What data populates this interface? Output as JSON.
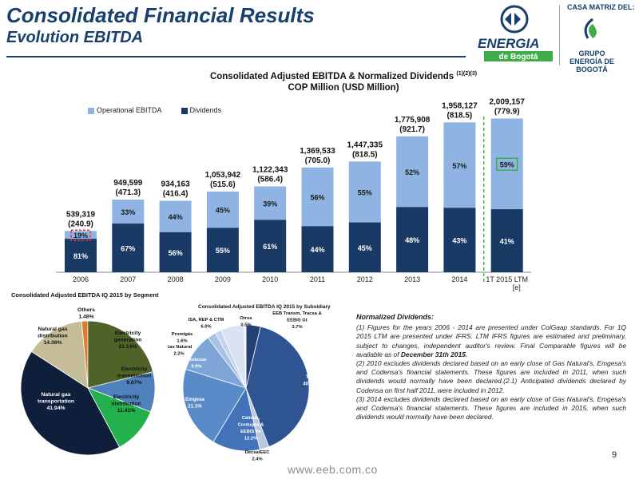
{
  "header": {
    "title": "Consolidated Financial Results",
    "subtitle": "Evolution EBITDA",
    "brand_logo_text": "ENERGIA",
    "brand_logo_sub": "de Bogotá",
    "casa_label": "CASA MATRIZ DEL:",
    "grupo_label": "GRUPO ENERGÍA DE BOGOTÁ"
  },
  "colors": {
    "navy": "#17406d",
    "light_blue": "#8fb4e3",
    "dark_bar": "#1a3a66",
    "highlight_red": "#e03030",
    "highlight_green": "#3fae49"
  },
  "chart_data": [
    {
      "type": "bar",
      "title": "Consolidated Adjusted EBITDA & Normalized Dividends",
      "title_superscript": "(1)(2)(3)",
      "subtitle": "COP Million (USD Million)",
      "categories": [
        "2006",
        "2007",
        "2008",
        "2009",
        "2010",
        "2011",
        "2012",
        "2013",
        "2014",
        "1T 2015 LTM [e]"
      ],
      "totals": [
        539319,
        949599,
        934163,
        1053942,
        1122343,
        1369533,
        1447335,
        1775908,
        1958127,
        2009157
      ],
      "total_labels": [
        "539,319",
        "949,599",
        "934,163",
        "1,053,942",
        "1,122,343",
        "1,369,533",
        "1,447,335",
        "1,775,908",
        "1,958,127",
        "2,009,157"
      ],
      "usd_labels": [
        "(240.9)",
        "(471.3)",
        "(416.4)",
        "(515.6)",
        "(586.4)",
        "(705.0)",
        "(818.5)",
        "(921.7)",
        "(818.5)",
        "(779.9)"
      ],
      "series": [
        {
          "name": "Dividends",
          "color": "#1a3a66",
          "values": [
            81,
            67,
            56,
            55,
            61,
            44,
            45,
            48,
            43,
            41
          ],
          "labels": [
            "81%",
            "67%",
            "56%",
            "55%",
            "61%",
            "44%",
            "45%",
            "48%",
            "43%",
            "41%"
          ]
        },
        {
          "name": "Operational EBITDA",
          "color": "#8fb4e3",
          "values": [
            19,
            33,
            44,
            45,
            39,
            56,
            55,
            52,
            57,
            59
          ],
          "labels": [
            "19%",
            "33%",
            "44%",
            "45%",
            "39%",
            "56%",
            "55%",
            "52%",
            "57%",
            "59%"
          ]
        }
      ],
      "legend_labels": [
        "Operational EBITDA",
        "Dividends"
      ],
      "highlighted": {
        "red_index": 0,
        "green_index": 9
      },
      "ylim": [
        0,
        2400000
      ],
      "grid": false,
      "legend_position": "top-left"
    },
    {
      "type": "pie",
      "title": "Consolidated Adjusted EBITDA IQ 2015 by Segment",
      "slices": [
        {
          "label": "Others",
          "value": 1.48,
          "text": "1.48%",
          "color": "#e07a30"
        },
        {
          "label": "Electricity generation",
          "value": 21.14,
          "text": "21.14%",
          "color": "#4f6228"
        },
        {
          "label": "Electricity transmission",
          "value": 9.67,
          "text": "9.67%",
          "color": "#4f81bd"
        },
        {
          "label": "Electricity distribution",
          "value": 11.41,
          "text": "11.41%",
          "color": "#22b14c"
        },
        {
          "label": "Natural gas transportation",
          "value": 41.94,
          "text": "41.94%",
          "color": "#0f1e3a"
        },
        {
          "label": "Natural gas distribution",
          "value": 14.36,
          "text": "14.36%",
          "color": "#c4bd97"
        }
      ]
    },
    {
      "type": "pie",
      "title": "Consolidated Adjusted EBITDA IQ 2015 by Subsidiary",
      "slices": [
        {
          "label": "EEB Transm, Tracsa & EEBIS Gt",
          "value": 3.7,
          "text": "3.7%",
          "color": "#233f73"
        },
        {
          "label": "TGI",
          "value": 40.4,
          "text": "40.4%",
          "color": "#2e5591"
        },
        {
          "label": "Decsa/EEC",
          "value": 2.4,
          "text": "2.4%",
          "color": "#b8c8de"
        },
        {
          "label": "Cálidda, Contugas & EEBIS Pe",
          "value": 12.2,
          "text": "12.2%",
          "color": "#4472b8"
        },
        {
          "label": "Emgesa",
          "value": 21.1,
          "text": "21.1%",
          "color": "#5a8ac8"
        },
        {
          "label": "Codensa",
          "value": 9.9,
          "text": "9.9%",
          "color": "#7ea5d8"
        },
        {
          "label": "Gas Natural",
          "value": 2.2,
          "text": "2.2%",
          "color": "#a9c2e4"
        },
        {
          "label": "Promigás",
          "value": 1.6,
          "text": "1.6%",
          "color": "#c2d3ea"
        },
        {
          "label": "ISA, REP & CTM",
          "value": 6.0,
          "text": "6.0%",
          "color": "#d9e3f1"
        },
        {
          "label": "Otros",
          "value": 0.5,
          "text": "0.5%",
          "color": "#e9eef6"
        }
      ]
    }
  ],
  "notes": {
    "heading": "Normalized Dividends:",
    "n1a": "(1) Figures for the years 2006 - 2014 are presented under ColGaap standards. For 1Q 2015 LTM are presented under IFRS. LTM IFRS figures are estimated and preliminary, subject to changes, independent auditor's review. Final Comparable figures will be available as of ",
    "n1b": "December 31th 2015.",
    "n2": "(2) 2010 excludes dividends declared based on an early close of Gas Natural's, Emgesa's and Codensa's financial statements.  These figures are included in 2011, when such dividends would normally have been declared.(2.1) Anticipated dividends declared by Codensa on first half 2011, were included in 2012.",
    "n3": "(3) 2014 excludes dividends declared based on an early  close of Gas Natural's, Emgesa's and Codensa's financial statements.  These figures are included in 2015, when such dividends would normally have been declared."
  },
  "footer": {
    "page_number": "9",
    "website": "www.eeb.com.co"
  }
}
